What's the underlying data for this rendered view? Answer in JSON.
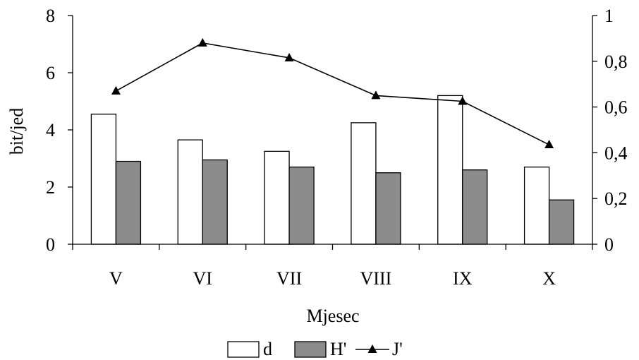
{
  "chart_data": {
    "type": "bar",
    "categories": [
      "V",
      "VI",
      "VII",
      "VIII",
      "IX",
      "X"
    ],
    "series": [
      {
        "name": "d",
        "kind": "bar",
        "axis": "left",
        "color": "#ffffff",
        "values": [
          4.55,
          3.65,
          3.25,
          4.25,
          5.2,
          2.7
        ]
      },
      {
        "name": "H'",
        "kind": "bar",
        "axis": "left",
        "color": "#8c8c8c",
        "values": [
          2.9,
          2.95,
          2.7,
          2.5,
          2.6,
          1.55
        ]
      },
      {
        "name": "J'",
        "kind": "line",
        "axis": "right",
        "color": "#000000",
        "marker": "triangle",
        "values": [
          0.67,
          0.88,
          0.815,
          0.65,
          0.625,
          0.435
        ]
      }
    ],
    "xlabel": "Mjesec",
    "ylabel": "bit/jed",
    "ylim": [
      0,
      8
    ],
    "y2lim": [
      0,
      1
    ],
    "yticks": [
      "0",
      "2",
      "4",
      "6",
      "8"
    ],
    "y2ticks": [
      "0",
      "0,2",
      "0,4",
      "0,6",
      "0,8",
      "1"
    ],
    "grid": false,
    "legend_position": "bottom-center"
  }
}
